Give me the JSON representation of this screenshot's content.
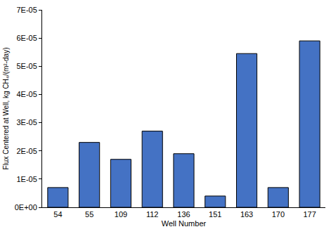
{
  "chart_data": {
    "type": "bar",
    "x_label": "Well Number",
    "y_label": "Flux Centered at Well, kg CH₄/(m²-day)",
    "categories": [
      "54",
      "55",
      "109",
      "112",
      "136",
      "151",
      "163",
      "170",
      "177"
    ],
    "values": [
      7e-06,
      2.3e-05,
      1.7e-05,
      2.7e-05,
      1.9e-05,
      4e-06,
      5.45e-05,
      7e-06,
      5.9e-05
    ],
    "color": "#4472c4",
    "ylim": [
      0,
      7e-05
    ],
    "yticks": [
      {
        "value": 0,
        "label": "0E+00"
      },
      {
        "value": 1e-05,
        "label": "1E-05"
      },
      {
        "value": 2e-05,
        "label": "2E-05"
      },
      {
        "value": 3e-05,
        "label": "3E-05"
      },
      {
        "value": 4e-05,
        "label": "4E-05"
      },
      {
        "value": 5e-05,
        "label": "5E-05"
      },
      {
        "value": 6e-05,
        "label": "6E-05"
      },
      {
        "value": 7e-05,
        "label": "7E-05"
      }
    ],
    "grid": false
  }
}
